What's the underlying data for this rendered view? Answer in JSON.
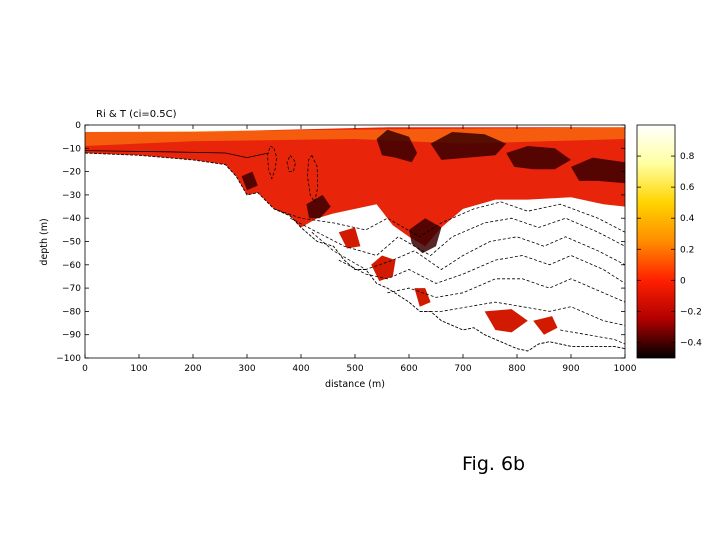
{
  "chart_data": {
    "type": "heatmap",
    "title": "Ri & T (ci=0.5C)",
    "xlabel": "distance (m)",
    "ylabel": "depth (m)",
    "xlim": [
      0,
      1000
    ],
    "ylim": [
      -100,
      0
    ],
    "x_ticks": [
      0,
      100,
      200,
      300,
      400,
      500,
      600,
      700,
      800,
      900,
      1000
    ],
    "y_ticks": [
      0,
      -10,
      -20,
      -30,
      -40,
      -50,
      -60,
      -70,
      -80,
      -90,
      -100
    ],
    "colorbar": {
      "range": [
        -0.5,
        1.0
      ],
      "ticks": [
        -0.4,
        -0.2,
        0,
        0.2,
        0.4,
        0.6,
        0.8
      ],
      "tick_labels": [
        "-0.4",
        "-0.2",
        "0",
        "0.2",
        "0.4",
        "0.6",
        "0.8"
      ],
      "colormap": [
        "#000000",
        "#b00000",
        "#ff2000",
        "#ff8c00",
        "#ffd400",
        "#ffffa0",
        "#ffffff"
      ]
    },
    "bottom_profile": [
      [
        0,
        -12
      ],
      [
        100,
        -13
      ],
      [
        200,
        -15
      ],
      [
        260,
        -17
      ],
      [
        280,
        -22
      ],
      [
        300,
        -30
      ],
      [
        320,
        -29
      ],
      [
        350,
        -36
      ],
      [
        380,
        -39
      ],
      [
        400,
        -44
      ],
      [
        430,
        -50
      ],
      [
        460,
        -52
      ],
      [
        480,
        -58
      ],
      [
        500,
        -62
      ],
      [
        520,
        -62
      ],
      [
        540,
        -68
      ],
      [
        560,
        -70
      ],
      [
        580,
        -73
      ],
      [
        600,
        -76
      ],
      [
        620,
        -80
      ],
      [
        640,
        -80
      ],
      [
        660,
        -84
      ],
      [
        680,
        -86
      ],
      [
        700,
        -88
      ],
      [
        720,
        -87
      ],
      [
        740,
        -90
      ],
      [
        760,
        -92
      ],
      [
        780,
        -94
      ],
      [
        800,
        -96
      ],
      [
        820,
        -97
      ],
      [
        840,
        -94
      ],
      [
        860,
        -93
      ],
      [
        880,
        -94
      ],
      [
        900,
        -95
      ],
      [
        940,
        -95
      ],
      [
        980,
        -95
      ],
      [
        1000,
        -96
      ]
    ],
    "red_layer_base": [
      [
        0,
        -15
      ],
      [
        200,
        -15
      ],
      [
        260,
        -17
      ],
      [
        300,
        -30
      ],
      [
        350,
        -38
      ],
      [
        400,
        -44
      ],
      [
        430,
        -40
      ],
      [
        460,
        -38
      ],
      [
        500,
        -36
      ],
      [
        540,
        -34
      ],
      [
        570,
        -43
      ],
      [
        600,
        -48
      ],
      [
        630,
        -52
      ],
      [
        660,
        -44
      ],
      [
        700,
        -36
      ],
      [
        760,
        -32
      ],
      [
        820,
        -32
      ],
      [
        900,
        -31
      ],
      [
        960,
        -34
      ],
      [
        1000,
        -35
      ]
    ],
    "temperature_contours": [
      [
        [
          350,
          -36
        ],
        [
          400,
          -40
        ],
        [
          460,
          -42
        ],
        [
          520,
          -45
        ],
        [
          560,
          -40
        ],
        [
          620,
          -48
        ],
        [
          660,
          -42
        ],
        [
          720,
          -36
        ],
        [
          770,
          -33
        ],
        [
          820,
          -37
        ],
        [
          880,
          -34
        ],
        [
          950,
          -40
        ],
        [
          1000,
          -46
        ]
      ],
      [
        [
          380,
          -40
        ],
        [
          430,
          -46
        ],
        [
          480,
          -52
        ],
        [
          540,
          -56
        ],
        [
          580,
          -48
        ],
        [
          640,
          -56
        ],
        [
          680,
          -48
        ],
        [
          740,
          -42
        ],
        [
          790,
          -40
        ],
        [
          840,
          -44
        ],
        [
          890,
          -40
        ],
        [
          950,
          -46
        ],
        [
          1000,
          -52
        ]
      ],
      [
        [
          420,
          -46
        ],
        [
          460,
          -54
        ],
        [
          520,
          -62
        ],
        [
          570,
          -58
        ],
        [
          610,
          -54
        ],
        [
          660,
          -62
        ],
        [
          700,
          -56
        ],
        [
          750,
          -50
        ],
        [
          800,
          -48
        ],
        [
          850,
          -52
        ],
        [
          890,
          -48
        ],
        [
          950,
          -54
        ],
        [
          1000,
          -60
        ]
      ],
      [
        [
          470,
          -58
        ],
        [
          520,
          -64
        ],
        [
          560,
          -66
        ],
        [
          600,
          -62
        ],
        [
          650,
          -68
        ],
        [
          700,
          -64
        ],
        [
          760,
          -58
        ],
        [
          810,
          -56
        ],
        [
          860,
          -60
        ],
        [
          900,
          -56
        ],
        [
          960,
          -62
        ],
        [
          1000,
          -68
        ]
      ],
      [
        [
          560,
          -72
        ],
        [
          600,
          -70
        ],
        [
          650,
          -74
        ],
        [
          700,
          -72
        ],
        [
          760,
          -66
        ],
        [
          810,
          -66
        ],
        [
          860,
          -70
        ],
        [
          900,
          -66
        ],
        [
          960,
          -72
        ],
        [
          1000,
          -76
        ]
      ],
      [
        [
          620,
          -80
        ],
        [
          660,
          -80
        ],
        [
          710,
          -78
        ],
        [
          760,
          -76
        ],
        [
          810,
          -78
        ],
        [
          860,
          -80
        ],
        [
          900,
          -78
        ],
        [
          960,
          -84
        ],
        [
          1000,
          -86
        ]
      ],
      [
        [
          880,
          -88
        ],
        [
          930,
          -90
        ],
        [
          980,
          -92
        ],
        [
          1000,
          -94
        ]
      ]
    ],
    "eddy_contours": [
      [
        [
          350,
          -10
        ],
        [
          355,
          -14
        ],
        [
          352,
          -19
        ],
        [
          346,
          -23
        ],
        [
          340,
          -19
        ],
        [
          338,
          -13
        ],
        [
          343,
          -9
        ],
        [
          350,
          -10
        ]
      ],
      [
        [
          420,
          -13
        ],
        [
          430,
          -18
        ],
        [
          431,
          -27
        ],
        [
          425,
          -33
        ],
        [
          417,
          -30
        ],
        [
          412,
          -22
        ],
        [
          414,
          -15
        ],
        [
          420,
          -13
        ]
      ],
      [
        [
          380,
          -13
        ],
        [
          390,
          -16
        ],
        [
          386,
          -20
        ],
        [
          378,
          -20
        ],
        [
          374,
          -16
        ],
        [
          380,
          -13
        ]
      ]
    ],
    "dark_patches": [
      [
        [
          540,
          -6
        ],
        [
          560,
          -2
        ],
        [
          600,
          -5
        ],
        [
          615,
          -12
        ],
        [
          605,
          -16
        ],
        [
          575,
          -14
        ],
        [
          550,
          -13
        ],
        [
          540,
          -6
        ]
      ],
      [
        [
          640,
          -8
        ],
        [
          680,
          -3
        ],
        [
          740,
          -4
        ],
        [
          780,
          -8
        ],
        [
          760,
          -13
        ],
        [
          710,
          -14
        ],
        [
          660,
          -15
        ],
        [
          640,
          -8
        ]
      ],
      [
        [
          780,
          -12
        ],
        [
          820,
          -9
        ],
        [
          870,
          -10
        ],
        [
          900,
          -15
        ],
        [
          870,
          -19
        ],
        [
          830,
          -19
        ],
        [
          795,
          -18
        ],
        [
          780,
          -12
        ]
      ],
      [
        [
          900,
          -18
        ],
        [
          940,
          -14
        ],
        [
          1000,
          -16
        ],
        [
          1000,
          -25
        ],
        [
          950,
          -24
        ],
        [
          915,
          -24
        ],
        [
          900,
          -18
        ]
      ],
      [
        [
          600,
          -45
        ],
        [
          630,
          -40
        ],
        [
          660,
          -44
        ],
        [
          650,
          -52
        ],
        [
          625,
          -55
        ],
        [
          605,
          -51
        ],
        [
          600,
          -45
        ]
      ],
      [
        [
          410,
          -34
        ],
        [
          440,
          -30
        ],
        [
          455,
          -35
        ],
        [
          435,
          -40
        ],
        [
          415,
          -40
        ],
        [
          410,
          -34
        ]
      ],
      [
        [
          290,
          -22
        ],
        [
          310,
          -20
        ],
        [
          320,
          -26
        ],
        [
          300,
          -28
        ],
        [
          290,
          -22
        ]
      ]
    ],
    "deep_patches": [
      [
        [
          530,
          -60
        ],
        [
          550,
          -56
        ],
        [
          575,
          -58
        ],
        [
          570,
          -65
        ],
        [
          545,
          -67
        ],
        [
          530,
          -60
        ]
      ],
      [
        [
          610,
          -70
        ],
        [
          630,
          -70
        ],
        [
          640,
          -76
        ],
        [
          620,
          -78
        ],
        [
          610,
          -70
        ]
      ],
      [
        [
          740,
          -80
        ],
        [
          790,
          -79
        ],
        [
          820,
          -84
        ],
        [
          790,
          -89
        ],
        [
          760,
          -88
        ],
        [
          740,
          -80
        ]
      ],
      [
        [
          830,
          -84
        ],
        [
          865,
          -82
        ],
        [
          875,
          -87
        ],
        [
          850,
          -90
        ],
        [
          830,
          -84
        ]
      ],
      [
        [
          470,
          -46
        ],
        [
          500,
          -44
        ],
        [
          510,
          -52
        ],
        [
          485,
          -53
        ],
        [
          470,
          -46
        ]
      ]
    ],
    "figure_caption": "Fig. 6b"
  }
}
